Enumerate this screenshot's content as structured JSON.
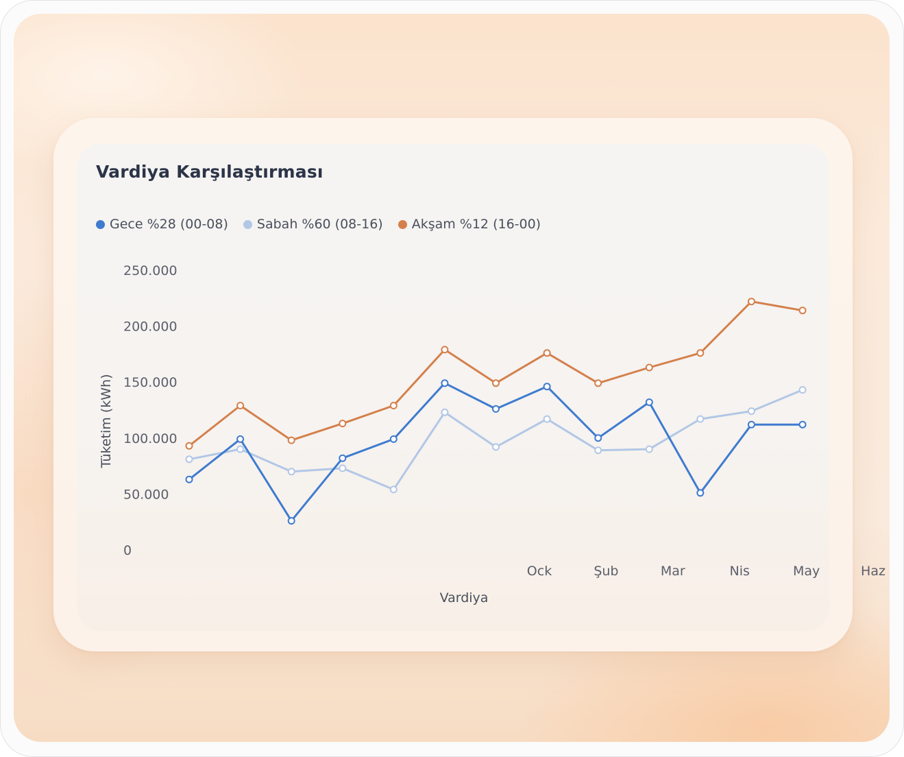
{
  "chart_data": {
    "type": "line",
    "title": "Vardiya Karşılaştırması",
    "xlabel": "Vardiya",
    "ylabel": "Tüketim (kWh)",
    "y_ticks": [
      "250.000",
      "200.000",
      "150.000",
      "100.000",
      "50.000",
      "0"
    ],
    "x_tick_labels": [
      "Ock",
      "Şub",
      "Mar",
      "Nis",
      "May",
      "Haz"
    ],
    "ylim": [
      0,
      250000
    ],
    "grid": false,
    "legend_position": "top-left",
    "series": [
      {
        "name": "Gece %28 (00-08)",
        "color": "#3f7bcf",
        "values": [
          63000,
          99000,
          26000,
          82000,
          99000,
          149000,
          126000,
          146000,
          100000,
          132000,
          51000,
          112000,
          112000
        ]
      },
      {
        "name": "Sabah %60 (08-16)",
        "color": "#b2c7e6",
        "values": [
          81000,
          90000,
          70000,
          73000,
          54000,
          123000,
          92000,
          117000,
          89000,
          90000,
          117000,
          124000,
          143000
        ]
      },
      {
        "name": "Akşam %12 (16-00)",
        "color": "#d4804c",
        "values": [
          93000,
          129000,
          98000,
          113000,
          129000,
          179000,
          149000,
          176000,
          149000,
          163000,
          176000,
          222000,
          214000
        ]
      }
    ]
  }
}
